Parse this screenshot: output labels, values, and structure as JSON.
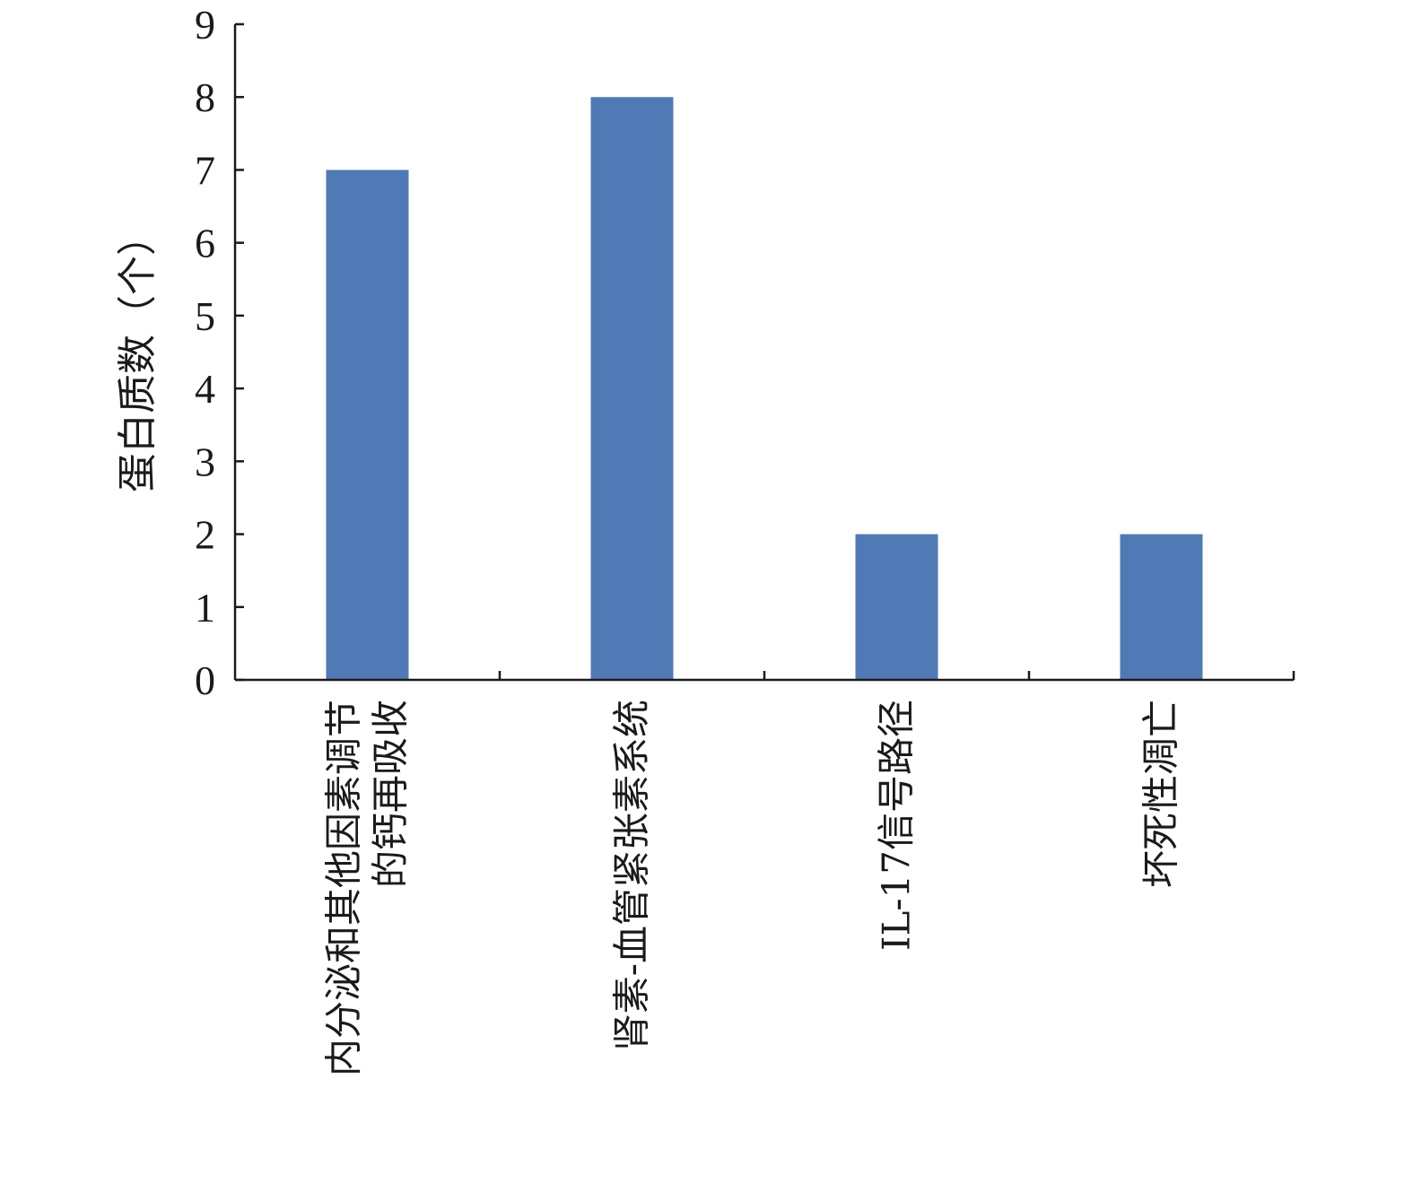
{
  "chart_data": {
    "type": "bar",
    "categories": [
      [
        "内分泌和其他因素调节",
        "的钙再吸收"
      ],
      [
        "肾素-血管紧张素系统"
      ],
      [
        "IL-17信号路径"
      ],
      [
        "坏死性凋亡"
      ]
    ],
    "values": [
      7,
      8,
      2,
      2
    ],
    "ylabel": "蛋白质数（个）",
    "xlabel": "",
    "title": "",
    "ylim": [
      0,
      9
    ],
    "yticks": [
      0,
      1,
      2,
      3,
      4,
      5,
      6,
      7,
      8,
      9
    ],
    "grid": false,
    "bar_color": "#4f7ab5"
  }
}
